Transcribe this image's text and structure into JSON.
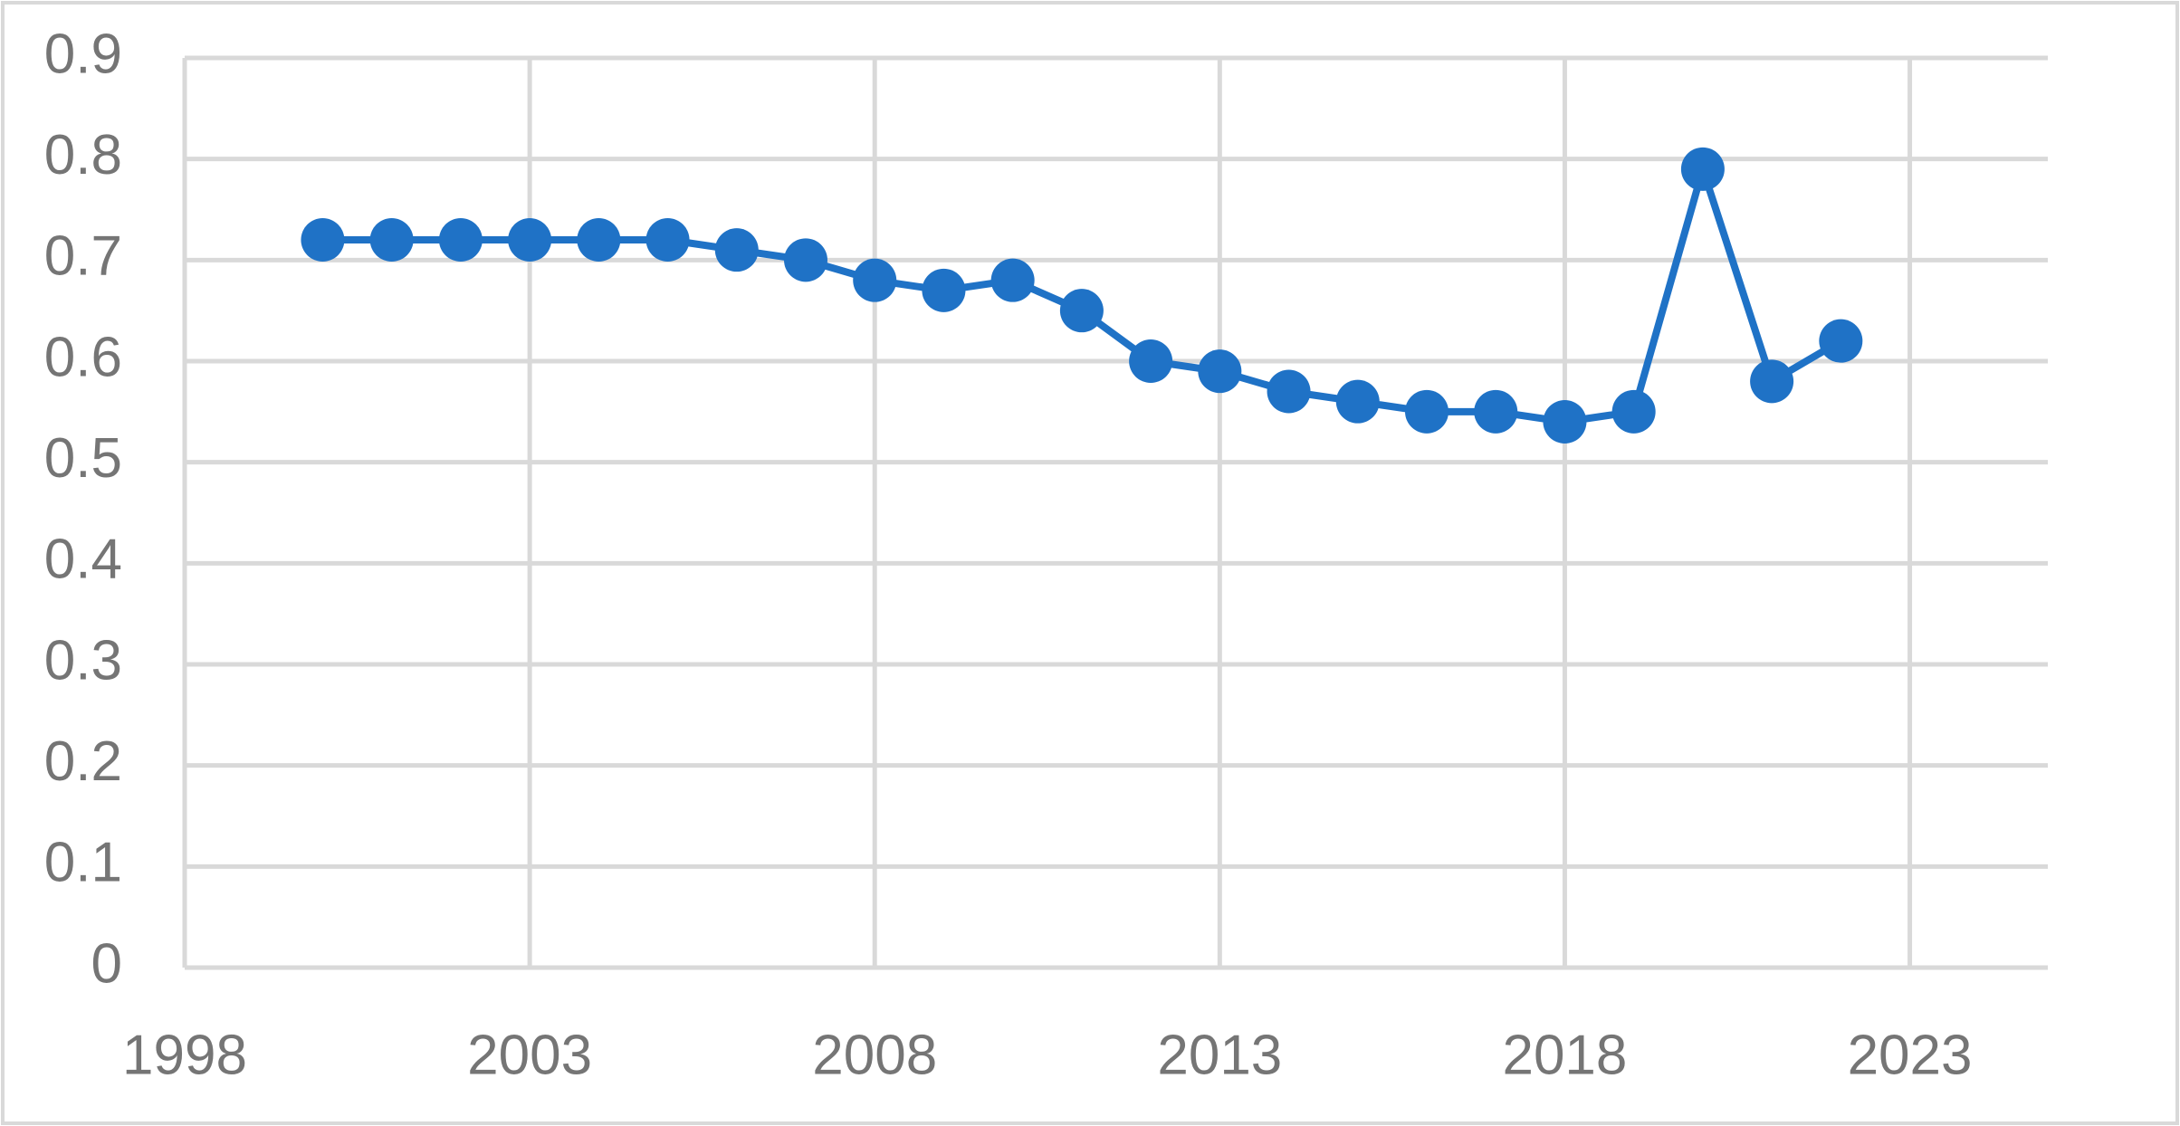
{
  "chart_data": {
    "type": "line",
    "x": [
      2000,
      2001,
      2002,
      2003,
      2004,
      2005,
      2006,
      2007,
      2008,
      2009,
      2010,
      2011,
      2012,
      2013,
      2014,
      2015,
      2016,
      2017,
      2018,
      2019,
      2020,
      2021,
      2022
    ],
    "series": [
      {
        "color": "#1f72c6",
        "values": [
          0.72,
          0.72,
          0.72,
          0.72,
          0.72,
          0.72,
          0.71,
          0.7,
          0.68,
          0.67,
          0.68,
          0.65,
          0.6,
          0.59,
          0.57,
          0.56,
          0.55,
          0.55,
          0.54,
          0.55,
          0.79,
          0.58,
          0.62
        ]
      }
    ],
    "xlim": [
      1998,
      2025
    ],
    "xticks": [
      1998,
      2003,
      2008,
      2013,
      2018,
      2023
    ],
    "ylim": [
      0,
      0.9
    ],
    "yticks": [
      0,
      0.1,
      0.2,
      0.3,
      0.4,
      0.5,
      0.6,
      0.7,
      0.8,
      0.9
    ],
    "grid": true
  }
}
